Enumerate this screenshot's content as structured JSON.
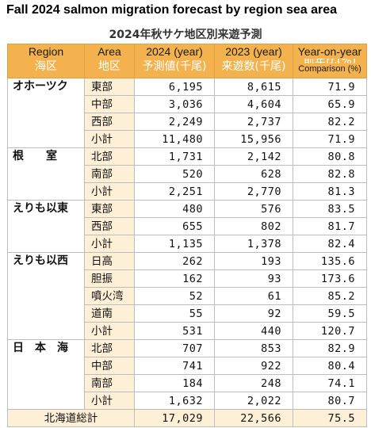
{
  "title_en": "Fall 2024 salmon migration forecast by region sea area",
  "title_jp": "2024年秋サケ地区別来遊予測",
  "headers": {
    "region": {
      "en": "Region",
      "jp": "海区"
    },
    "area": {
      "en": "Area",
      "jp": "地区"
    },
    "y2024": {
      "en": "2024 (year)",
      "jp": "予測値(千尾)"
    },
    "y2023": {
      "en": "2023 (year)",
      "jp": "来遊数(千尾)"
    },
    "yoy": {
      "en": "Year-on-year",
      "jp": "前年比(%)",
      "sub": "Comparison (%)"
    }
  },
  "groups": [
    {
      "region": "オホーツク",
      "rows": [
        {
          "area": "東部",
          "v2024": "6,195",
          "v2023": "8,615",
          "yoy": "71.9"
        },
        {
          "area": "中部",
          "v2024": "3,036",
          "v2023": "4,604",
          "yoy": "65.9"
        },
        {
          "area": "西部",
          "v2024": "2,249",
          "v2023": "2,737",
          "yoy": "82.2"
        },
        {
          "area": "小計",
          "v2024": "11,480",
          "v2023": "15,956",
          "yoy": "71.9",
          "subtotal": true
        }
      ]
    },
    {
      "region": "根　　室",
      "rows": [
        {
          "area": "北部",
          "v2024": "1,731",
          "v2023": "2,142",
          "yoy": "80.8"
        },
        {
          "area": "南部",
          "v2024": "520",
          "v2023": "628",
          "yoy": "82.8"
        },
        {
          "area": "小計",
          "v2024": "2,251",
          "v2023": "2,770",
          "yoy": "81.3",
          "subtotal": true
        }
      ]
    },
    {
      "region": "えりも以東",
      "rows": [
        {
          "area": "東部",
          "v2024": "480",
          "v2023": "576",
          "yoy": "83.5"
        },
        {
          "area": "西部",
          "v2024": "655",
          "v2023": "802",
          "yoy": "81.7"
        },
        {
          "area": "小計",
          "v2024": "1,135",
          "v2023": "1,378",
          "yoy": "82.4",
          "subtotal": true
        }
      ]
    },
    {
      "region": "えりも以西",
      "rows": [
        {
          "area": "日高",
          "v2024": "262",
          "v2023": "193",
          "yoy": "135.6"
        },
        {
          "area": "胆振",
          "v2024": "162",
          "v2023": "93",
          "yoy": "173.6"
        },
        {
          "area": "噴火湾",
          "v2024": "52",
          "v2023": "61",
          "yoy": "85.2"
        },
        {
          "area": "道南",
          "v2024": "55",
          "v2023": "92",
          "yoy": "59.5"
        },
        {
          "area": "小計",
          "v2024": "531",
          "v2023": "440",
          "yoy": "120.7",
          "subtotal": true
        }
      ]
    },
    {
      "region": "日　本　海",
      "rows": [
        {
          "area": "北部",
          "v2024": "707",
          "v2023": "853",
          "yoy": "82.9"
        },
        {
          "area": "中部",
          "v2024": "741",
          "v2023": "922",
          "yoy": "80.4"
        },
        {
          "area": "南部",
          "v2024": "184",
          "v2023": "248",
          "yoy": "74.1"
        },
        {
          "area": "小計",
          "v2024": "1,632",
          "v2023": "2,022",
          "yoy": "80.7",
          "subtotal": true
        }
      ]
    }
  ],
  "total": {
    "label": "北海道総計",
    "v2024": "17,029",
    "v2023": "22,566",
    "yoy": "75.5"
  }
}
